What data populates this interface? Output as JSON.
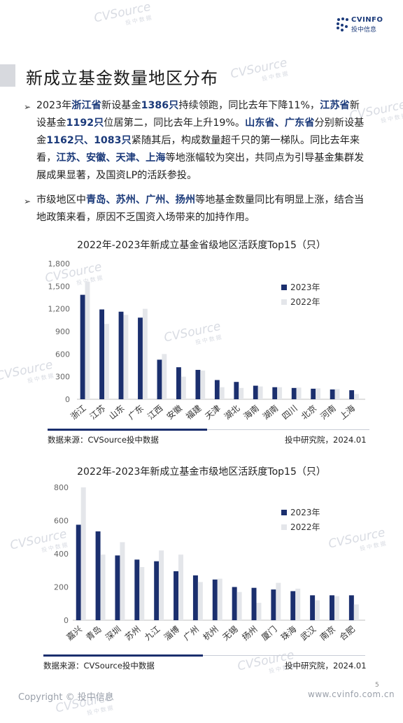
{
  "header": {
    "logo_text": "CVINFO",
    "logo_sub": "投中信息"
  },
  "page": {
    "title": "新成立基金数量地区分布",
    "number": "5",
    "copyright": "Copyright © 投中信息",
    "website": "www.cvinfo.com.cn",
    "watermark": "CVSource",
    "watermark_sub": "投中数据"
  },
  "bullets": [
    {
      "segments": [
        {
          "t": "2023年",
          "hl": false
        },
        {
          "t": "浙江省",
          "hl": true
        },
        {
          "t": "新设基金",
          "hl": false
        },
        {
          "t": "1386只",
          "hl": true
        },
        {
          "t": "持续领跑，同比去年下降11%，",
          "hl": false
        },
        {
          "t": "江苏省",
          "hl": true
        },
        {
          "t": "新设基金",
          "hl": false
        },
        {
          "t": "1192只",
          "hl": true
        },
        {
          "t": "位居第二，同比去年上升19%。",
          "hl": false
        },
        {
          "t": "山东省、广东省",
          "hl": true
        },
        {
          "t": "分别新设基金",
          "hl": false
        },
        {
          "t": "1162只、1083只",
          "hl": true
        },
        {
          "t": "紧随其后，构成数量超千只的第一梯队。同比去年来看，",
          "hl": false
        },
        {
          "t": "江苏、安徽、天津、上海",
          "hl": true
        },
        {
          "t": "等地涨幅较为突出，共同点为引导基金集群发展成果显著，及国资LP的活跃参投。",
          "hl": false
        }
      ]
    },
    {
      "segments": [
        {
          "t": "市级地区中",
          "hl": false
        },
        {
          "t": "青岛、苏州、广州、扬州",
          "hl": true
        },
        {
          "t": "等地基金数量同比有明显上涨，结合当地政策来看，原因不乏国资入场带来的加持作用。",
          "hl": false
        }
      ]
    }
  ],
  "chart_data": [
    {
      "type": "bar",
      "title": "2022年-2023年新成立基金省级地区活跃度Top15（只）",
      "categories": [
        "浙江",
        "江苏",
        "山东",
        "广东",
        "江西",
        "安徽",
        "福建",
        "天津",
        "湖北",
        "海南",
        "湖南",
        "四川",
        "北京",
        "河南",
        "上海"
      ],
      "series": [
        {
          "name": "2023年",
          "color": "#1b2f6e",
          "values": [
            1386,
            1192,
            1162,
            1083,
            525,
            425,
            390,
            255,
            230,
            180,
            160,
            150,
            140,
            130,
            120
          ]
        },
        {
          "name": "2022年",
          "color": "#e4e6ea",
          "values": [
            1560,
            1000,
            1120,
            1200,
            600,
            300,
            380,
            160,
            150,
            170,
            160,
            155,
            145,
            135,
            70
          ]
        }
      ],
      "yticks": [
        "0",
        "300",
        "600",
        "900",
        "1,200",
        "1,500",
        "1,800"
      ],
      "ylim": [
        0,
        1800
      ],
      "legend": "right",
      "source": "数据来源：CVSource投中数据",
      "publisher": "投中研究院，2024.01"
    },
    {
      "type": "bar",
      "title": "2022年-2023年新成立基金市级地区活跃度Top15（只）",
      "categories": [
        "嘉兴",
        "青岛",
        "深圳",
        "苏州",
        "九江",
        "淄博",
        "广州",
        "杭州",
        "无锡",
        "扬州",
        "厦门",
        "珠海",
        "武汉",
        "南京",
        "合肥"
      ],
      "series": [
        {
          "name": "2023年",
          "color": "#1b2f6e",
          "values": [
            575,
            535,
            390,
            365,
            355,
            295,
            270,
            245,
            200,
            195,
            185,
            175,
            150,
            150,
            150
          ]
        },
        {
          "name": "2022年",
          "color": "#e4e6ea",
          "values": [
            800,
            395,
            470,
            320,
            420,
            395,
            230,
            250,
            170,
            105,
            225,
            190,
            120,
            145,
            95
          ]
        }
      ],
      "yticks": [
        "0",
        "200",
        "400",
        "600",
        "800"
      ],
      "ylim": [
        0,
        800
      ],
      "legend": "right",
      "source": "数据来源：CVSource投中数据",
      "publisher": "投中研究院，2024.01"
    }
  ]
}
